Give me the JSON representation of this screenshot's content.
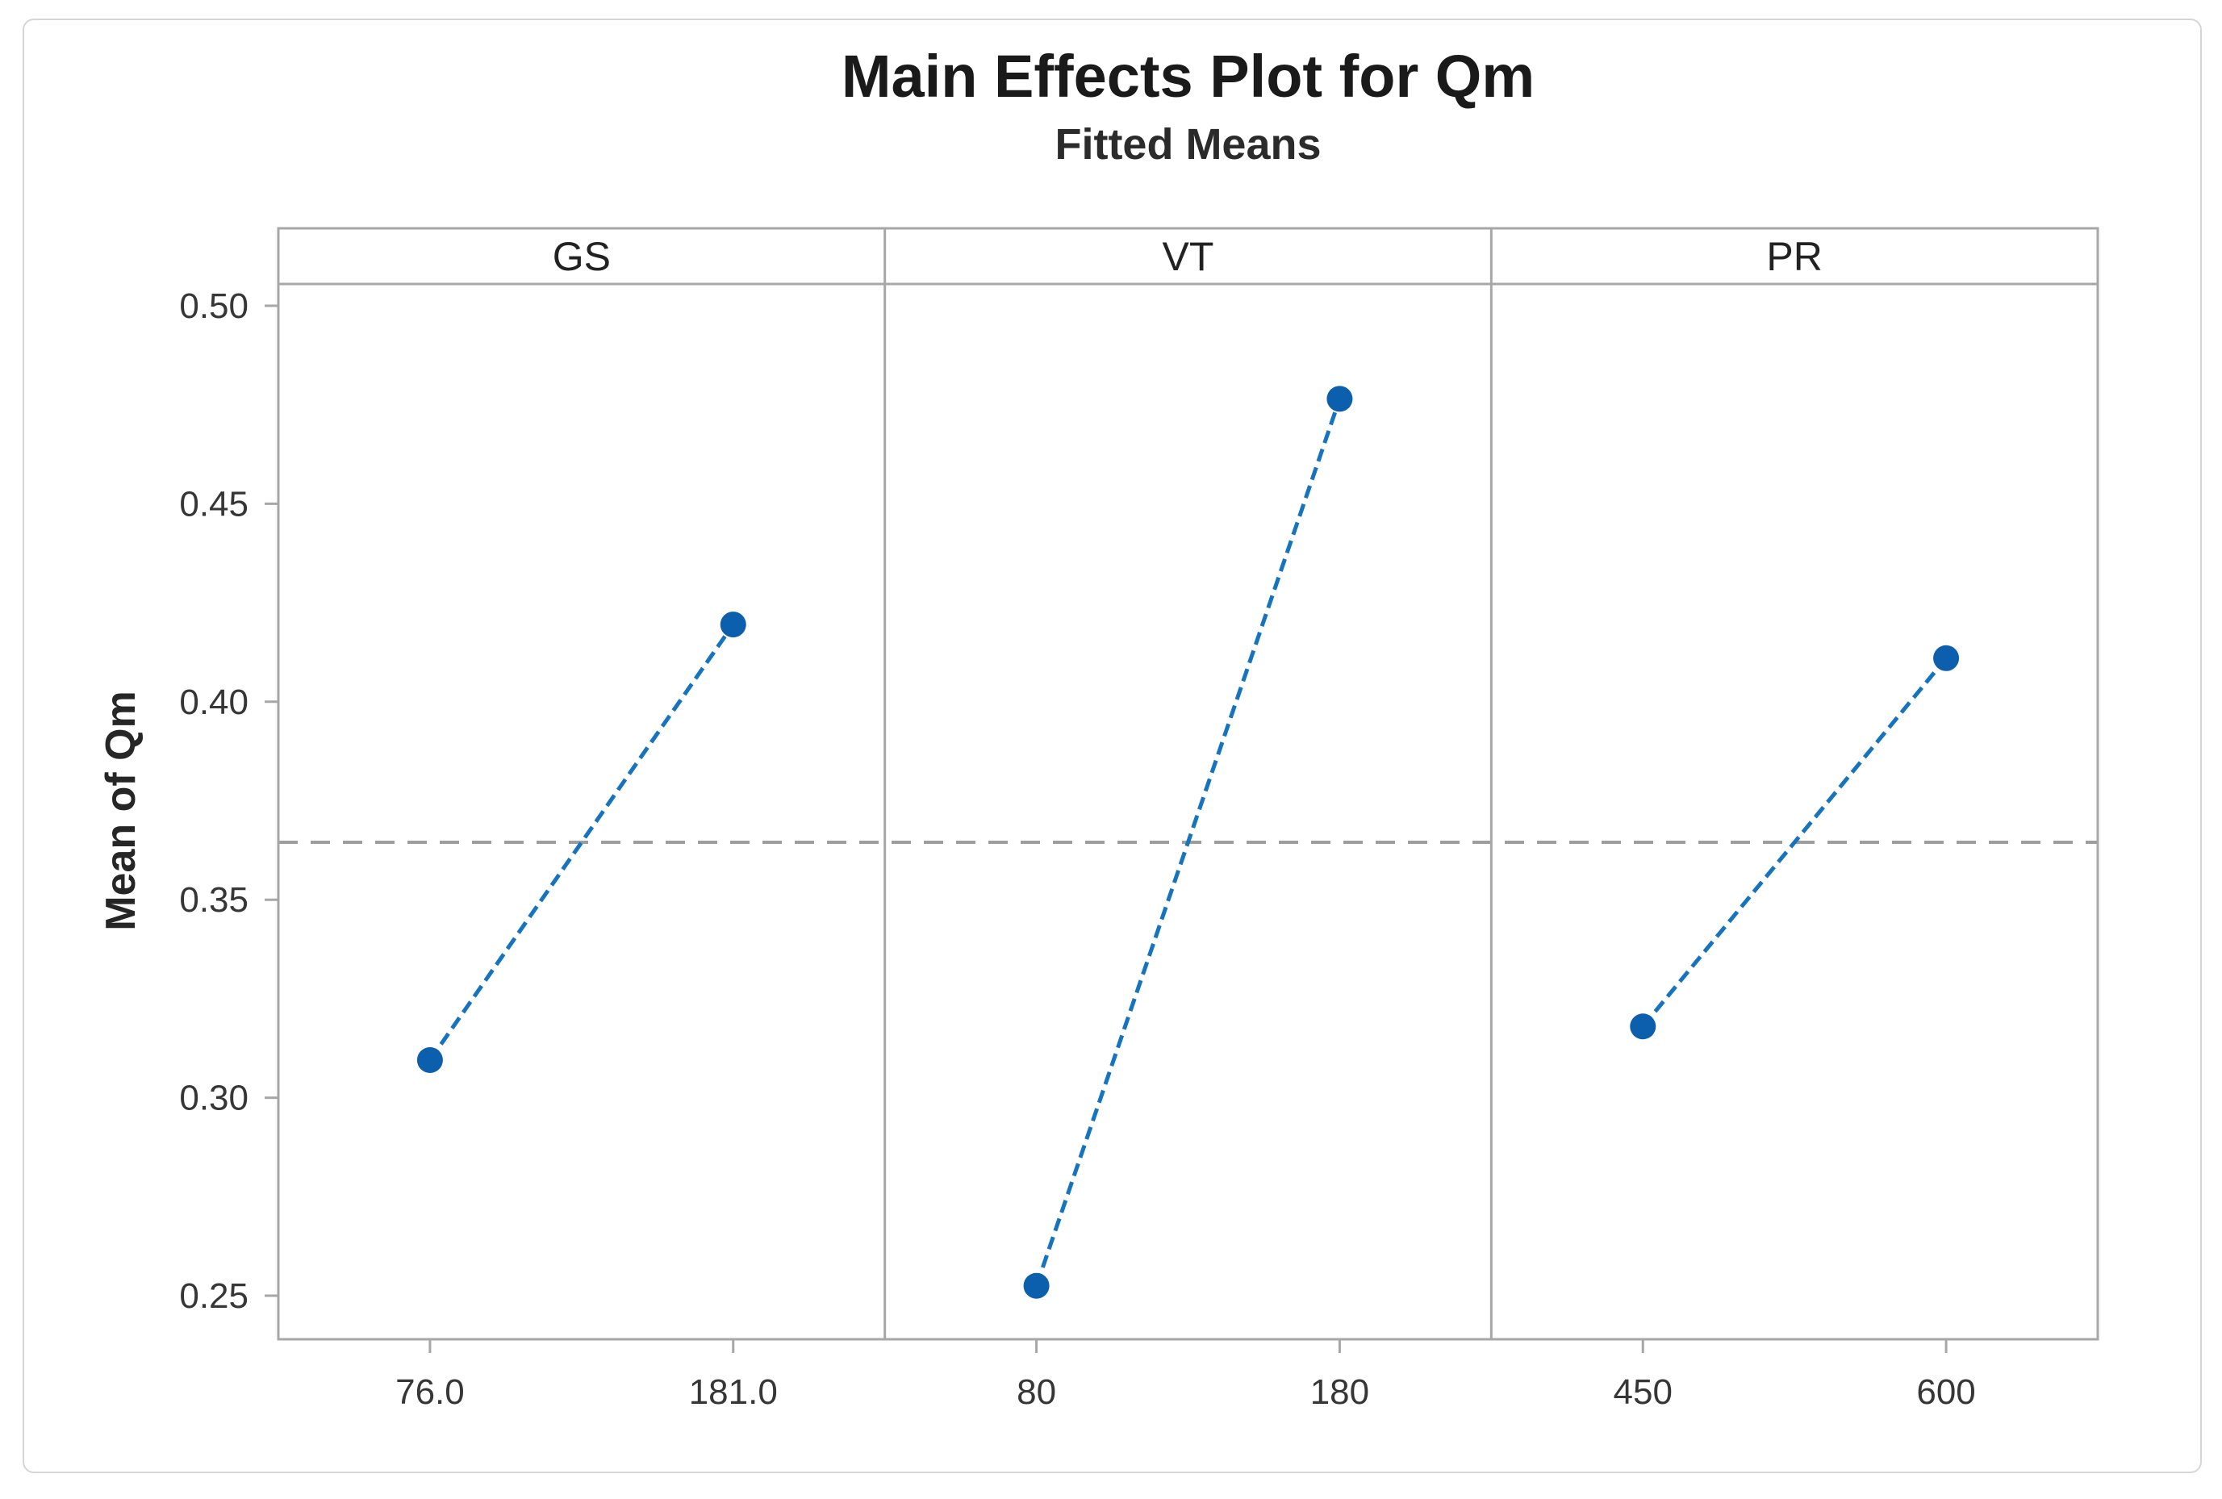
{
  "window": {
    "background": "#ffffff",
    "card_border": "#d6d6d6"
  },
  "chart_data": {
    "type": "line",
    "title": "Main Effects Plot for Qm",
    "subtitle": "Fitted Means",
    "ylabel": "Mean of Qm",
    "xlabel": "",
    "ytick_labels": [
      "0.25",
      "0.30",
      "0.35",
      "0.40",
      "0.45",
      "0.50"
    ],
    "ytick_values": [
      0.25,
      0.3,
      0.35,
      0.4,
      0.45,
      0.5
    ],
    "ylim": [
      0.239,
      0.5055
    ],
    "overall_mean": 0.3645,
    "grid": "off",
    "legend": "none",
    "panels": [
      {
        "factor": "GS",
        "levels": [
          "76.0",
          "181.0"
        ],
        "means": [
          0.3095,
          0.4195
        ]
      },
      {
        "factor": "VT",
        "levels": [
          "80",
          "180"
        ],
        "means": [
          0.2525,
          0.4765
        ]
      },
      {
        "factor": "PR",
        "levels": [
          "450",
          "600"
        ],
        "means": [
          0.318,
          0.411
        ]
      }
    ],
    "colors": {
      "series_line": "#1673bd",
      "marker": "#0b5fad",
      "frame": "#a7a7a7",
      "mean_line": "#9d9d9d",
      "tick_text": "#363636",
      "panel_text": "#222222",
      "title_text": "#1a1a1a"
    }
  }
}
